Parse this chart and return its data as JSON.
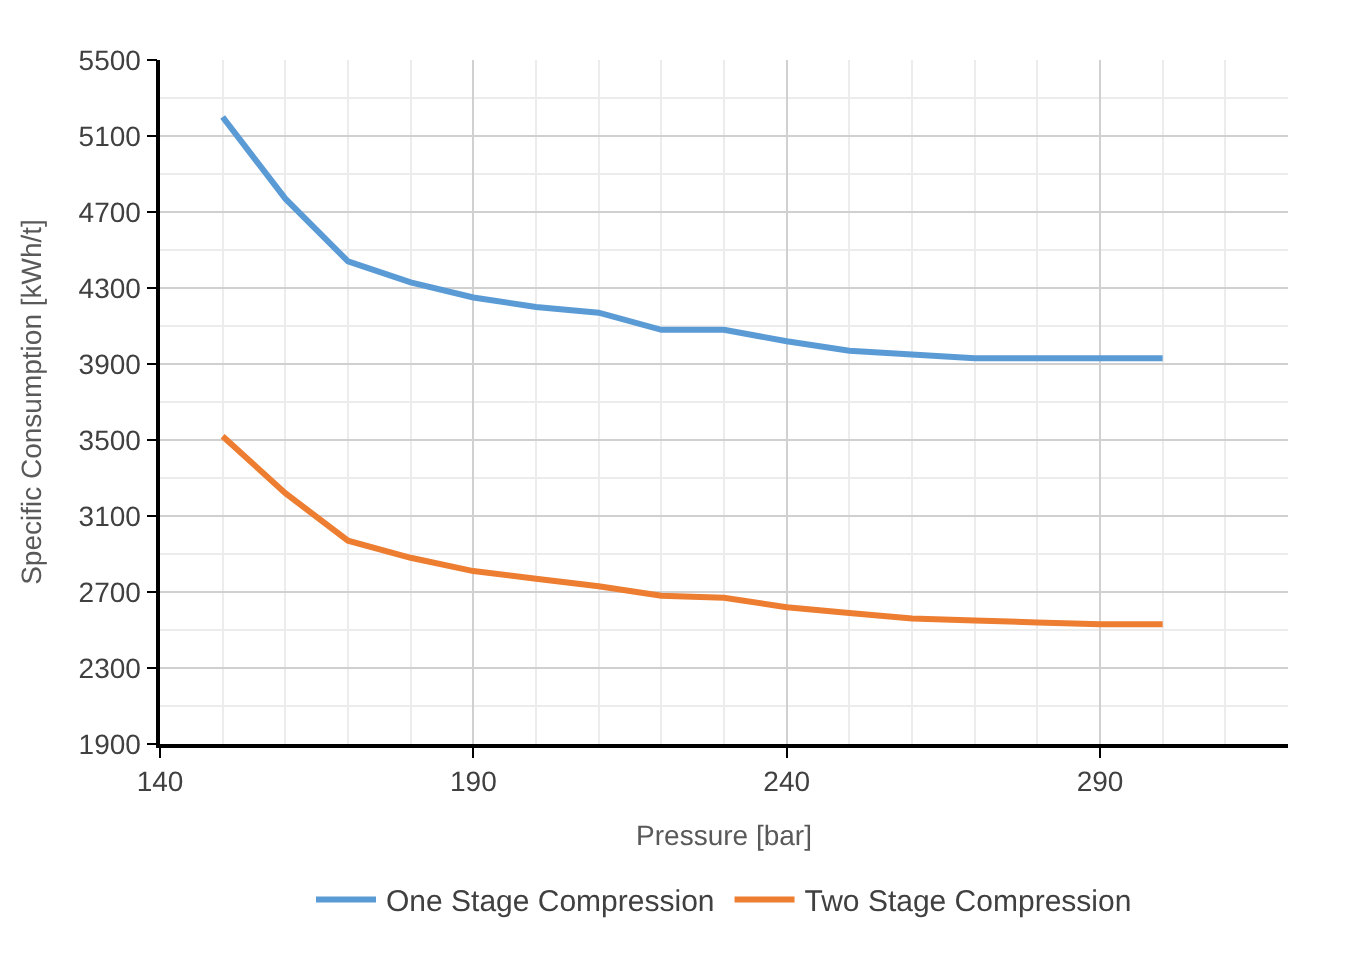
{
  "chart_data": {
    "type": "line",
    "xlabel": "Pressure [bar]",
    "ylabel": "Specific Consumption [kWh/t]",
    "x": [
      150,
      160,
      170,
      180,
      190,
      200,
      210,
      220,
      230,
      240,
      250,
      260,
      270,
      280,
      290,
      300
    ],
    "series": [
      {
        "name": "One Stage Compression",
        "color": "#5b9bd5",
        "values": [
          5200,
          4770,
          4440,
          4330,
          4250,
          4200,
          4170,
          4080,
          4080,
          4020,
          3970,
          3950,
          3930,
          3930,
          3930,
          3930
        ]
      },
      {
        "name": "Two Stage Compression",
        "color": "#ed7d31",
        "values": [
          3520,
          3220,
          2970,
          2880,
          2810,
          2770,
          2730,
          2680,
          2670,
          2620,
          2590,
          2560,
          2550,
          2540,
          2530,
          2530
        ]
      }
    ],
    "xlim": [
      140,
      320
    ],
    "xticks": [
      140,
      190,
      240,
      290
    ],
    "ylim": [
      1900,
      5500
    ],
    "yticks": [
      1900,
      2300,
      2700,
      3100,
      3500,
      3900,
      4300,
      4700,
      5100,
      5500
    ],
    "grid": true,
    "legend": "bottom",
    "marker": "none",
    "line_style": "solid"
  }
}
